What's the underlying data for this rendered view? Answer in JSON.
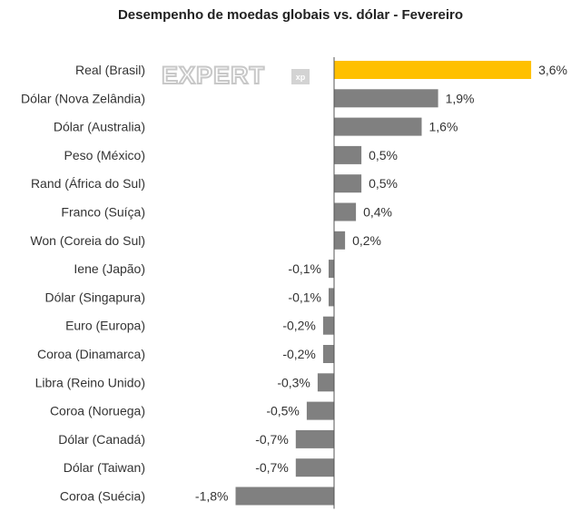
{
  "chart_data": {
    "type": "bar",
    "orientation": "horizontal",
    "title": "Desempenho de moedas globais vs. dólar - Fevereiro",
    "categories": [
      "Real (Brasil)",
      "Dólar (Nova Zelândia)",
      "Dólar (Australia)",
      "Peso (México)",
      "Rand (África do Sul)",
      "Franco (Suíça)",
      "Won (Coreia do Sul)",
      "Iene (Japão)",
      "Dólar (Singapura)",
      "Euro (Europa)",
      "Coroa (Dinamarca)",
      "Libra (Reino Unido)",
      "Coroa (Noruega)",
      "Dólar (Canadá)",
      "Dólar (Taiwan)",
      "Coroa (Suécia)"
    ],
    "values": [
      3.6,
      1.9,
      1.6,
      0.5,
      0.5,
      0.4,
      0.2,
      -0.1,
      -0.1,
      -0.2,
      -0.2,
      -0.3,
      -0.5,
      -0.7,
      -0.7,
      -1.8
    ],
    "value_labels": [
      "3,6%",
      "1,9%",
      "1,6%",
      "0,5%",
      "0,5%",
      "0,4%",
      "0,2%",
      "-0,1%",
      "-0,1%",
      "-0,2%",
      "-0,2%",
      "-0,3%",
      "-0,5%",
      "-0,7%",
      "-0,7%",
      "-1,8%"
    ],
    "highlight_index": 0,
    "colors": {
      "highlight": "#FFC000",
      "default": "#808080",
      "axis": "#555555",
      "text": "#333333"
    },
    "xlim": [
      -1.8,
      3.6
    ],
    "grid": false,
    "legend": "none"
  },
  "watermark": {
    "text": "EXPERT",
    "badge": "xp",
    "color": "#c8c8c8"
  }
}
